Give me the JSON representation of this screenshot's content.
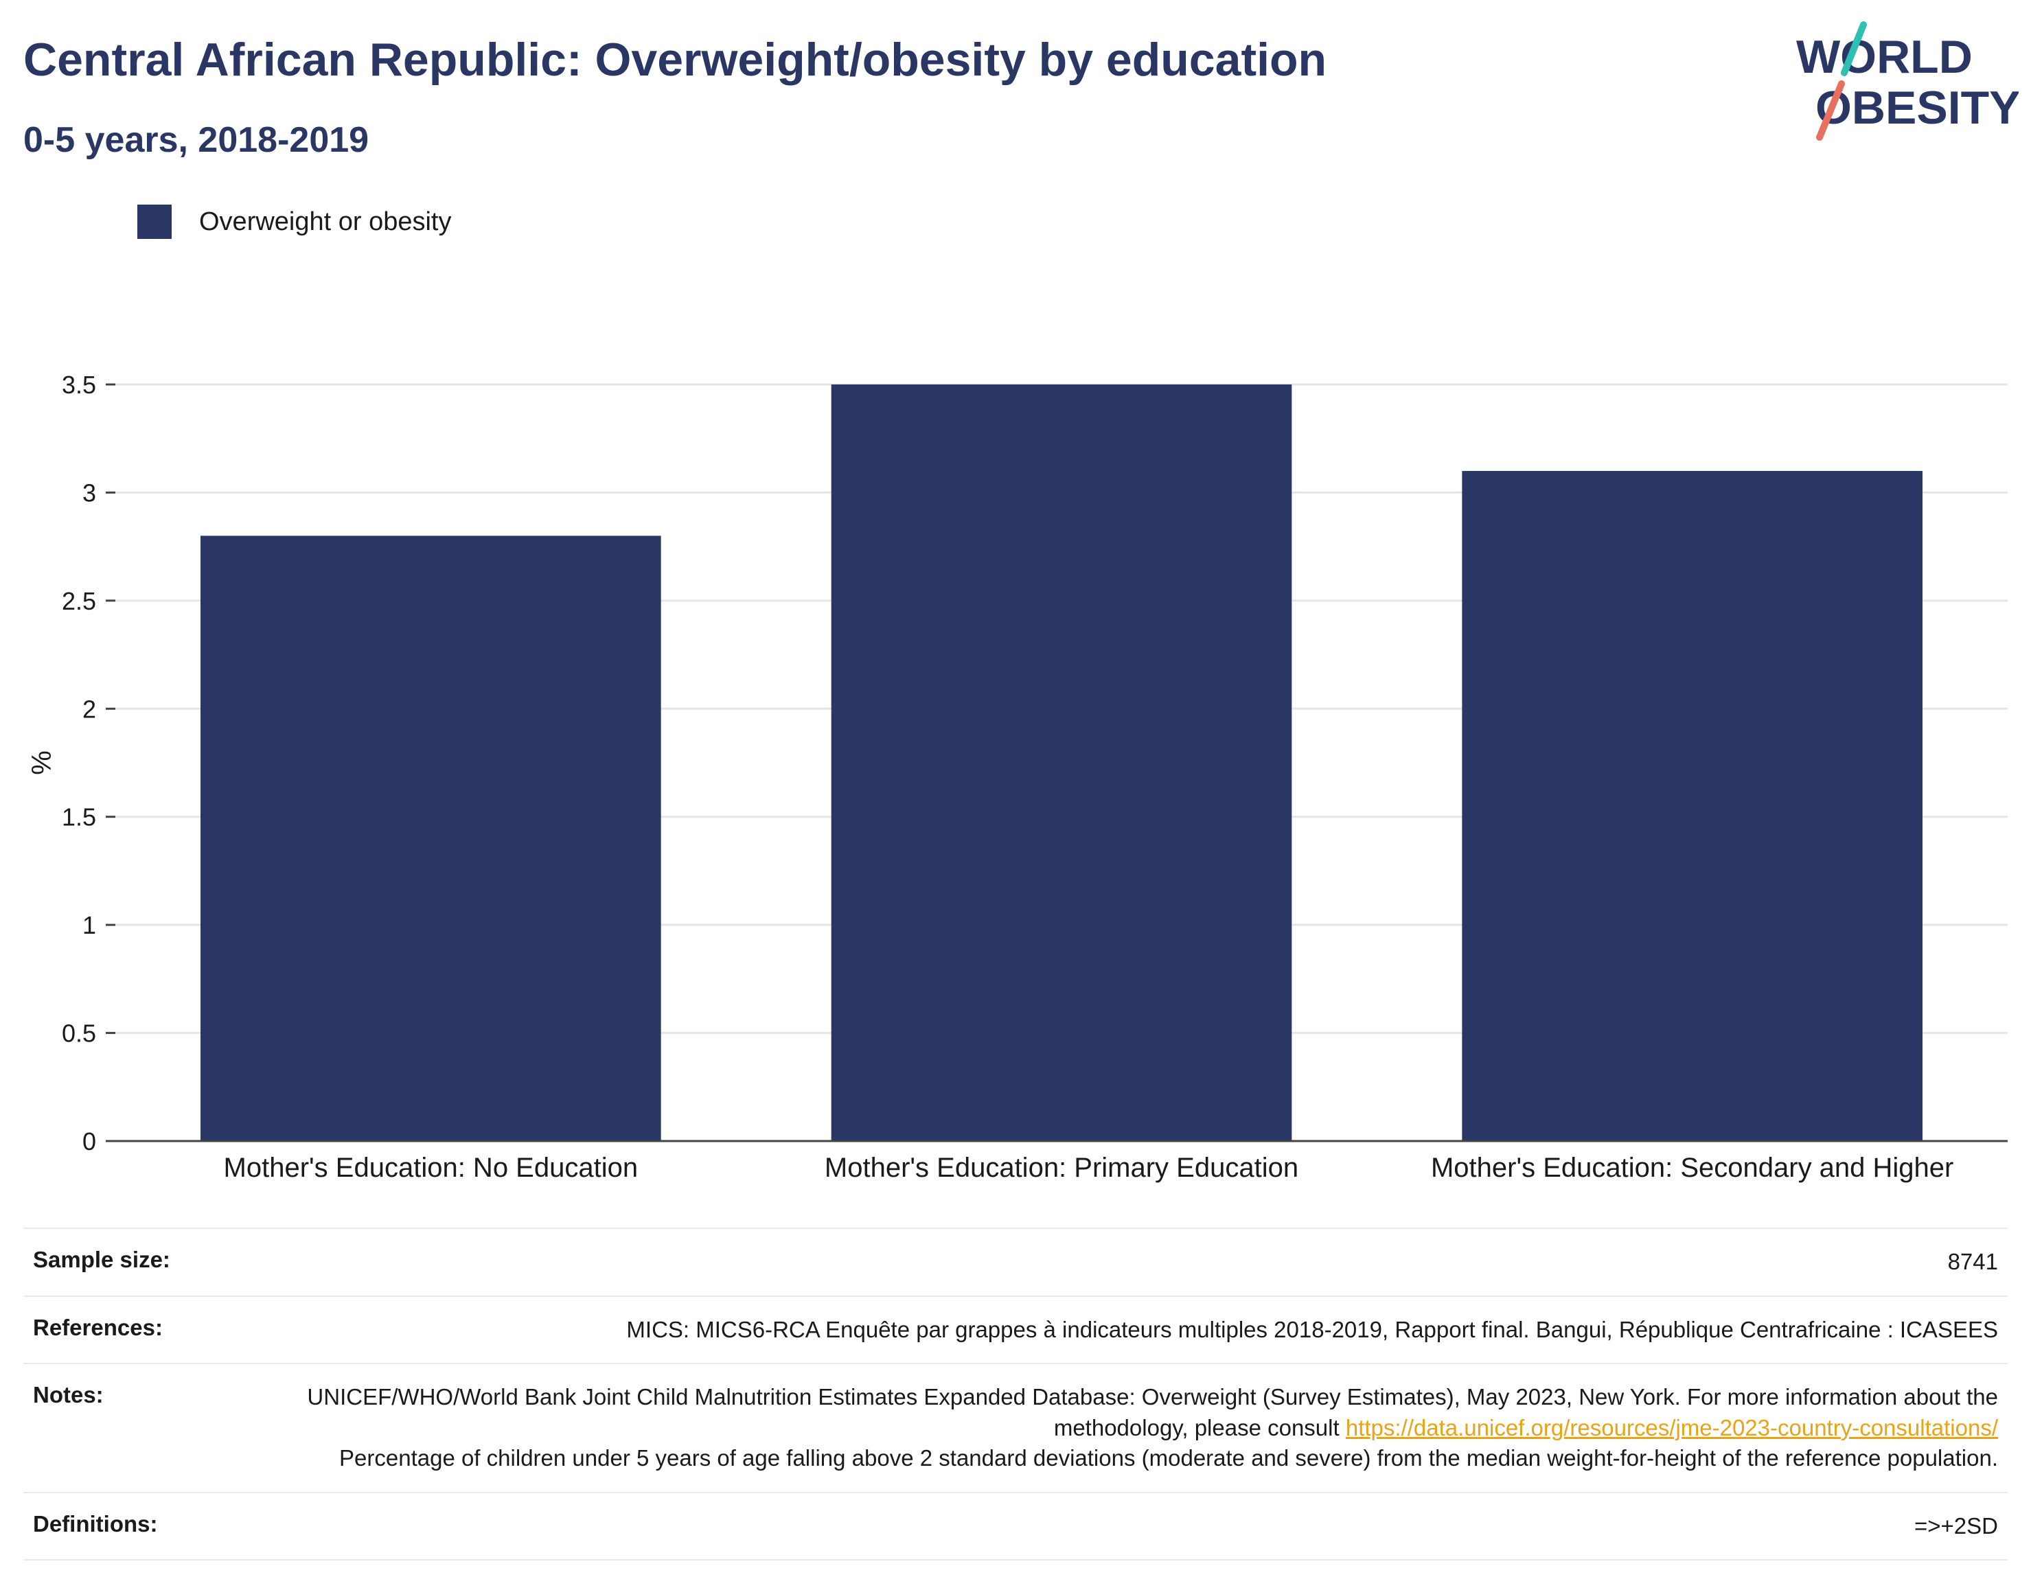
{
  "header": {
    "title": "Central African Republic: Overweight/obesity by education",
    "subtitle": "0-5 years, 2018-2019"
  },
  "logo": {
    "line1": "WORLD",
    "line2": "OBESITY"
  },
  "legend": {
    "label": "Overweight or obesity"
  },
  "chart_data": {
    "type": "bar",
    "categories": [
      "Mother's Education: No Education",
      "Mother's Education: Primary Education",
      "Mother's Education: Secondary and Higher"
    ],
    "series": [
      {
        "name": "Overweight or obesity",
        "values": [
          2.8,
          3.5,
          3.1
        ]
      }
    ],
    "ylabel": "%",
    "xlabel": "",
    "ylim": [
      0,
      3.5
    ],
    "yticks": [
      0,
      0.5,
      1,
      1.5,
      2,
      2.5,
      3,
      3.5
    ],
    "ytick_labels": [
      "0",
      "0.5",
      "1",
      "1.5",
      "2",
      "2.5",
      "3",
      "3.5"
    ],
    "grid": true,
    "legend_position": "top-left",
    "colors": {
      "bar": "#2a3663",
      "grid": "#e6e6e6",
      "axis": "#444444"
    }
  },
  "footer": {
    "sample_size_label": "Sample size:",
    "sample_size_value": "8741",
    "references_label": "References:",
    "references_value": "MICS: MICS6-RCA Enquête par grappes à indicateurs multiples 2018-2019, Rapport final. Bangui, République Centrafricaine : ICASEES",
    "notes_label": "Notes:",
    "notes_text_1": "UNICEF/WHO/World Bank Joint Child Malnutrition Estimates Expanded Database: Overweight (Survey Estimates), May 2023, New York. For more information about the methodology, please consult ",
    "notes_link": "https://data.unicef.org/resources/jme-2023-country-consultations/",
    "notes_text_2": "Percentage of children under 5 years of age falling above 2 standard deviations (moderate and severe) from the median weight-for-height of the reference population.",
    "definitions_label": "Definitions:",
    "definitions_value": "=>+2SD"
  }
}
